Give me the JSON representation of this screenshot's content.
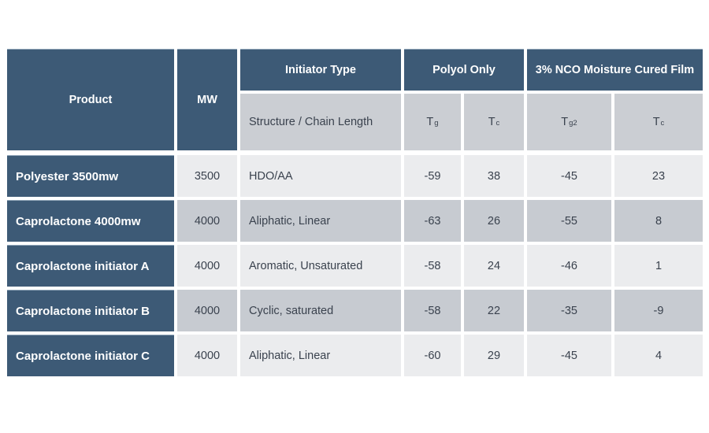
{
  "chart_data": {
    "type": "table",
    "header": {
      "product": "Product",
      "mw": "MW",
      "initiator_type": "Initiator Type",
      "polyol_only": "Polyol Only",
      "nco_moisture_cured_film": "3% NCO Moisture Cured Film",
      "structure_chain_length": "Structure / Chain Length",
      "tg": {
        "base": "T",
        "sub": "g"
      },
      "tc": {
        "base": "T",
        "sub": "c"
      },
      "tg2": {
        "base": "T",
        "sub": "g2"
      },
      "tc2": {
        "base": "T",
        "sub": "c"
      }
    },
    "rows": [
      {
        "product": "Polyester 3500mw",
        "mw": "3500",
        "structure": "HDO/AA",
        "tg": "-59",
        "tc": "38",
        "tg2": "-45",
        "tc2": "23"
      },
      {
        "product": "Caprolactone 4000mw",
        "mw": "4000",
        "structure": "Aliphatic, Linear",
        "tg": "-63",
        "tc": "26",
        "tg2": "-55",
        "tc2": "8"
      },
      {
        "product": "Caprolactone  initiator A",
        "mw": "4000",
        "structure": "Aromatic, Unsaturated",
        "tg": "-58",
        "tc": "24",
        "tg2": "-46",
        "tc2": "1"
      },
      {
        "product": "Caprolactone  initiator B",
        "mw": "4000",
        "structure": "Cyclic, saturated",
        "tg": "-58",
        "tc": "22",
        "tg2": "-35",
        "tc2": "-9"
      },
      {
        "product": "Caprolactone initiator C",
        "mw": "4000",
        "structure": "Aliphatic, Linear",
        "tg": "-60",
        "tc": "29",
        "tg2": "-45",
        "tc2": "4"
      }
    ]
  },
  "colors": {
    "header_navy": "#3d5a76",
    "subheader_gray": "#cbced3",
    "row_light": "#ebecee",
    "row_dark": "#c7cbd1",
    "grid_line": "#ffffff",
    "body_text": "#3a424e",
    "header_text": "#ffffff"
  }
}
